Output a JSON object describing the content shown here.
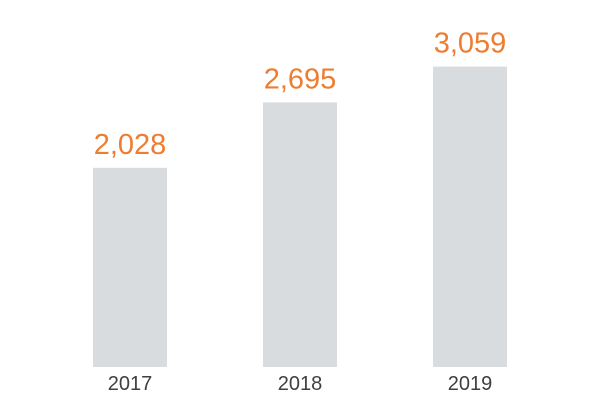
{
  "colors": {
    "bar": "#d9dcde",
    "value_label": "#ed7d31",
    "tick_label": "#404040"
  },
  "chart_data": {
    "type": "bar",
    "categories": [
      "2017",
      "2018",
      "2019"
    ],
    "values": [
      2028,
      2695,
      3059
    ],
    "value_labels": [
      "2,028",
      "2,695",
      "3,059"
    ],
    "title": "",
    "xlabel": "",
    "ylabel": "",
    "ylim": [
      0,
      3350
    ],
    "grid": false,
    "legend": "none"
  }
}
